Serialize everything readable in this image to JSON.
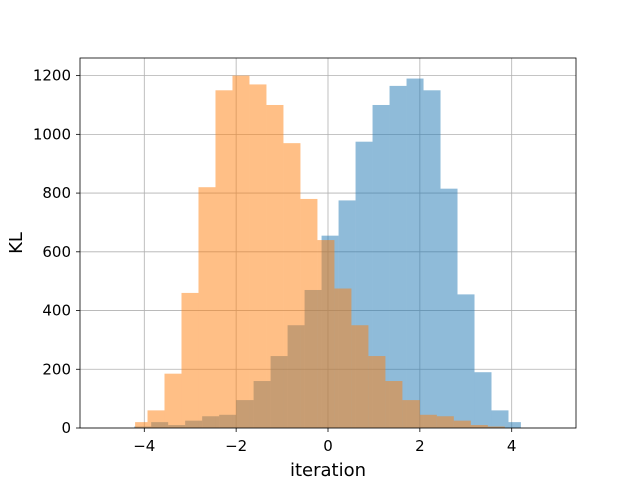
{
  "chart_data": {
    "type": "bar",
    "subtype": "overlapping-histogram",
    "title": "",
    "xlabel": "iteration",
    "ylabel": "KL",
    "xlim": [
      -5.4,
      5.4
    ],
    "ylim": [
      0,
      1260
    ],
    "grid": true,
    "x_ticks": [
      -4,
      -2,
      0,
      2,
      4
    ],
    "y_ticks": [
      0,
      200,
      400,
      600,
      800,
      1000,
      1200
    ],
    "series": [
      {
        "color": "#1f77b4",
        "opacity": 0.5,
        "bins": [
          {
            "x0": -4.22,
            "x1": -3.85,
            "y": 5
          },
          {
            "x0": -3.85,
            "x1": -3.48,
            "y": 20
          },
          {
            "x0": -3.48,
            "x1": -3.11,
            "y": 10
          },
          {
            "x0": -3.11,
            "x1": -2.74,
            "y": 25
          },
          {
            "x0": -2.74,
            "x1": -2.37,
            "y": 40
          },
          {
            "x0": -2.37,
            "x1": -2.0,
            "y": 45
          },
          {
            "x0": -2.0,
            "x1": -1.62,
            "y": 95
          },
          {
            "x0": -1.62,
            "x1": -1.25,
            "y": 160
          },
          {
            "x0": -1.25,
            "x1": -0.88,
            "y": 245
          },
          {
            "x0": -0.88,
            "x1": -0.51,
            "y": 350
          },
          {
            "x0": -0.51,
            "x1": -0.14,
            "y": 470
          },
          {
            "x0": -0.14,
            "x1": 0.23,
            "y": 655
          },
          {
            "x0": 0.23,
            "x1": 0.6,
            "y": 775
          },
          {
            "x0": 0.6,
            "x1": 0.97,
            "y": 975
          },
          {
            "x0": 0.97,
            "x1": 1.34,
            "y": 1100
          },
          {
            "x0": 1.34,
            "x1": 1.71,
            "y": 1165
          },
          {
            "x0": 1.71,
            "x1": 2.08,
            "y": 1190
          },
          {
            "x0": 2.08,
            "x1": 2.45,
            "y": 1150
          },
          {
            "x0": 2.45,
            "x1": 2.82,
            "y": 815
          },
          {
            "x0": 2.82,
            "x1": 3.19,
            "y": 455
          },
          {
            "x0": 3.19,
            "x1": 3.56,
            "y": 190
          },
          {
            "x0": 3.56,
            "x1": 3.93,
            "y": 60
          },
          {
            "x0": 3.93,
            "x1": 4.2,
            "y": 20
          }
        ]
      },
      {
        "color": "#ff7f0e",
        "opacity": 0.5,
        "bins": [
          {
            "x0": -4.2,
            "x1": -3.93,
            "y": 20
          },
          {
            "x0": -3.93,
            "x1": -3.56,
            "y": 60
          },
          {
            "x0": -3.56,
            "x1": -3.19,
            "y": 185
          },
          {
            "x0": -3.19,
            "x1": -2.82,
            "y": 460
          },
          {
            "x0": -2.82,
            "x1": -2.45,
            "y": 820
          },
          {
            "x0": -2.45,
            "x1": -2.08,
            "y": 1150
          },
          {
            "x0": -2.08,
            "x1": -1.71,
            "y": 1200
          },
          {
            "x0": -1.71,
            "x1": -1.34,
            "y": 1170
          },
          {
            "x0": -1.34,
            "x1": -0.97,
            "y": 1100
          },
          {
            "x0": -0.97,
            "x1": -0.6,
            "y": 970
          },
          {
            "x0": -0.6,
            "x1": -0.23,
            "y": 780
          },
          {
            "x0": -0.23,
            "x1": 0.14,
            "y": 640
          },
          {
            "x0": 0.14,
            "x1": 0.51,
            "y": 475
          },
          {
            "x0": 0.51,
            "x1": 0.88,
            "y": 350
          },
          {
            "x0": 0.88,
            "x1": 1.25,
            "y": 245
          },
          {
            "x0": 1.25,
            "x1": 1.62,
            "y": 160
          },
          {
            "x0": 1.62,
            "x1": 2.0,
            "y": 95
          },
          {
            "x0": 2.0,
            "x1": 2.37,
            "y": 45
          },
          {
            "x0": 2.37,
            "x1": 2.74,
            "y": 40
          },
          {
            "x0": 2.74,
            "x1": 3.11,
            "y": 25
          },
          {
            "x0": 3.11,
            "x1": 3.48,
            "y": 10
          },
          {
            "x0": 3.48,
            "x1": 3.85,
            "y": 5
          }
        ]
      }
    ]
  }
}
